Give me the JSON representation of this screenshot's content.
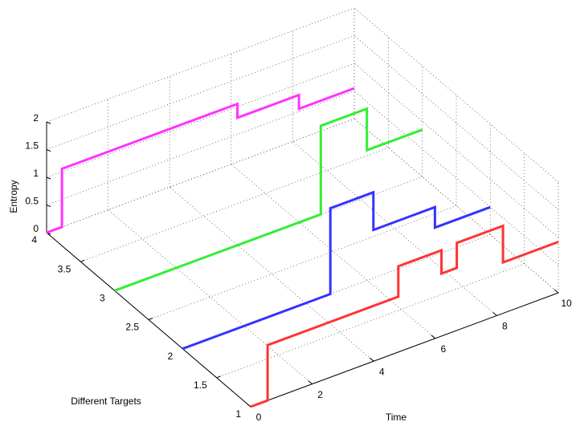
{
  "chart_data": {
    "type": "line3d",
    "xlabel": "Time",
    "ylabel": "Different Targets",
    "zlabel": "Entropy",
    "xlim": [
      0,
      10
    ],
    "ylim": [
      1,
      4
    ],
    "zlim": [
      0,
      2
    ],
    "xticks": [
      0,
      2,
      4,
      6,
      8,
      10
    ],
    "yticks": [
      1,
      1.5,
      2,
      2.5,
      3,
      3.5,
      4
    ],
    "zticks": [
      0,
      0.5,
      1,
      1.5,
      2
    ],
    "grid": true,
    "series": [
      {
        "color": "#ff33ff",
        "target": 4,
        "x": [
          0,
          0.5,
          0.5,
          6.2,
          6.2,
          8.2,
          8.2,
          10
        ],
        "values": [
          0,
          0,
          1.05,
          1.05,
          0.8,
          0.8,
          0.55,
          0.55
        ]
      },
      {
        "color": "#33ee33",
        "target": 3,
        "x": [
          0,
          6.7,
          6.7,
          8.2,
          8.2,
          10
        ],
        "values": [
          0,
          0,
          1.6,
          1.6,
          0.85,
          0.85
        ]
      },
      {
        "color": "#3333ff",
        "target": 2,
        "x": [
          0,
          4.8,
          4.8,
          6.2,
          6.2,
          8.2,
          8.2,
          10
        ],
        "values": [
          0,
          0,
          1.55,
          1.55,
          0.87,
          0.87,
          0.5,
          0.5
        ]
      },
      {
        "color": "#ff3333",
        "target": 1,
        "x": [
          0,
          0.55,
          0.55,
          4.8,
          4.8,
          6.2,
          6.2,
          6.7,
          6.7,
          8.2,
          8.2,
          10
        ],
        "values": [
          0,
          0,
          1,
          1,
          1.55,
          1.55,
          1.13,
          1.13,
          1.58,
          1.58,
          0.92,
          0.92
        ]
      }
    ]
  }
}
